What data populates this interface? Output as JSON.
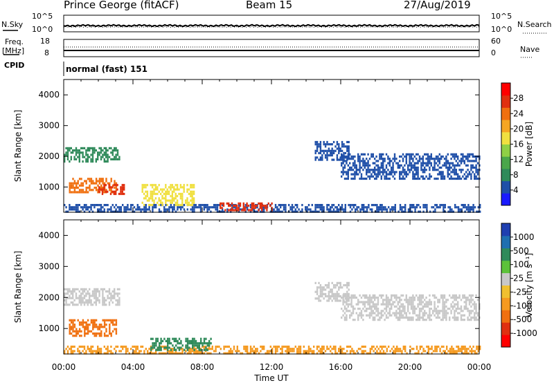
{
  "header": {
    "station": "Prince George (fitACF)",
    "beam": "Beam 15",
    "date": "27/Aug/2019"
  },
  "panels": {
    "nsky_label": "N.Sky",
    "nsearch_label": "N.Search",
    "freq_label_1": "Freq.",
    "freq_label_2": "[MHz]",
    "nave_label": "Nave",
    "cpid_label": "CPID",
    "cpid_value": "normal (fast) 151",
    "noise_ticks": [
      "10^5",
      "10^0"
    ],
    "freq_ticks": [
      "18",
      "8"
    ],
    "nave_ticks": [
      "60",
      "0"
    ]
  },
  "colors": {
    "power_scale": [
      "#1a1aff",
      "#1f4fa8",
      "#2f8a5a",
      "#4aa64a",
      "#8fd046",
      "#f0e040",
      "#f5a623",
      "#f07010",
      "#e03010",
      "#ff0000"
    ],
    "velocity_scale": [
      "#1f3fb0",
      "#1f6fb0",
      "#2f8a5a",
      "#5cc23a",
      "#c8c8c8",
      "#f0c030",
      "#f59a20",
      "#f07010",
      "#e03010",
      "#ff0000"
    ]
  },
  "chart_data": [
    {
      "type": "heatmap",
      "title": "",
      "xlabel": "",
      "ylabel": "Slant Range [km]",
      "xlim": [
        "00:00",
        "00:00"
      ],
      "ylim": [
        180,
        4500
      ],
      "x_tick_labels": [
        "00:00",
        "04:00",
        "08:00",
        "12:00",
        "16:00",
        "20:00",
        "00:00"
      ],
      "y_ticks": [
        1000,
        2000,
        3000,
        4000
      ],
      "colorbar": {
        "label": "Power [dB]",
        "ticks": [
          4,
          8,
          12,
          16,
          20,
          24,
          28
        ]
      },
      "regions": [
        {
          "hours": [
            0.0,
            24.0
          ],
          "range_km": [
            180,
            450
          ],
          "value": 4
        },
        {
          "hours": [
            0.0,
            3.2
          ],
          "range_km": [
            1800,
            2300
          ],
          "value": 10
        },
        {
          "hours": [
            0.3,
            3.0
          ],
          "range_km": [
            800,
            1300
          ],
          "value": 20
        },
        {
          "hours": [
            2.0,
            3.5
          ],
          "range_km": [
            750,
            1100
          ],
          "value": 26
        },
        {
          "hours": [
            4.5,
            7.5
          ],
          "range_km": [
            400,
            1100
          ],
          "value": 18
        },
        {
          "hours": [
            9.0,
            12.0
          ],
          "range_km": [
            250,
            500
          ],
          "value": 24
        },
        {
          "hours": [
            14.5,
            16.5
          ],
          "range_km": [
            1900,
            2500
          ],
          "value": 6
        },
        {
          "hours": [
            16.0,
            24.0
          ],
          "range_km": [
            1300,
            2100
          ],
          "value": 6
        }
      ]
    },
    {
      "type": "heatmap",
      "title": "",
      "xlabel": "Time UT",
      "ylabel": "Slant Range [km]",
      "xlim": [
        "00:00",
        "00:00"
      ],
      "ylim": [
        180,
        4500
      ],
      "x_tick_labels": [
        "00:00",
        "04:00",
        "08:00",
        "12:00",
        "16:00",
        "20:00",
        "00:00"
      ],
      "y_ticks": [
        1000,
        2000,
        3000,
        4000
      ],
      "colorbar": {
        "label": "Velocity [m s⁻¹]",
        "ticks": [
          1000,
          500,
          100,
          25,
          -25,
          -100,
          -500,
          -1000
        ]
      },
      "regions": [
        {
          "hours": [
            0.0,
            24.0
          ],
          "range_km": [
            180,
            450
          ],
          "value": -50
        },
        {
          "hours": [
            0.0,
            3.2
          ],
          "range_km": [
            1800,
            2300
          ],
          "value": 0
        },
        {
          "hours": [
            0.3,
            3.0
          ],
          "range_km": [
            800,
            1300
          ],
          "value": -200
        },
        {
          "hours": [
            5.0,
            8.5
          ],
          "range_km": [
            300,
            700
          ],
          "value": 150
        },
        {
          "hours": [
            14.5,
            16.5
          ],
          "range_km": [
            1900,
            2500
          ],
          "value": 0
        },
        {
          "hours": [
            16.0,
            24.0
          ],
          "range_km": [
            1300,
            2100
          ],
          "value": 0
        }
      ]
    }
  ]
}
